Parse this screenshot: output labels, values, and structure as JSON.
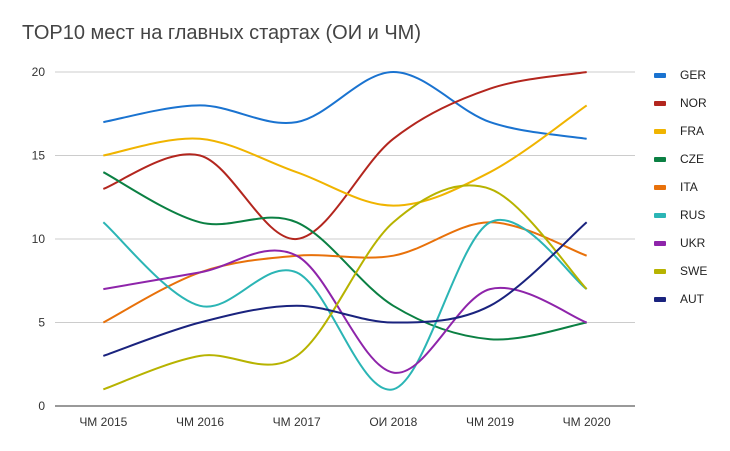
{
  "chart_data": {
    "type": "line",
    "title": "TOP10 мест на главных стартах (ОИ и ЧМ)",
    "xlabel": "",
    "ylabel": "",
    "ylim": [
      0,
      20
    ],
    "yticks": [
      "0",
      "5",
      "10",
      "15",
      "20"
    ],
    "categories": [
      "ЧМ 2015",
      "ЧМ 2016",
      "ЧМ 2017",
      "ОИ 2018",
      "ЧМ 2019",
      "ЧМ 2020"
    ],
    "grid": true,
    "legend": "right",
    "series": [
      {
        "name": "GER",
        "color": "#1a73d0",
        "values": [
          17,
          18,
          17,
          20,
          17,
          16
        ]
      },
      {
        "name": "NOR",
        "color": "#b3261e",
        "values": [
          13,
          15,
          10,
          16,
          19,
          20
        ]
      },
      {
        "name": "FRA",
        "color": "#f0b400",
        "values": [
          15,
          16,
          14,
          12,
          14,
          18
        ]
      },
      {
        "name": "CZE",
        "color": "#0b8043",
        "values": [
          14,
          11,
          11,
          6,
          4,
          5
        ]
      },
      {
        "name": "ITA",
        "color": "#e8710a",
        "values": [
          5,
          8,
          9,
          9,
          11,
          9
        ]
      },
      {
        "name": "RUS",
        "color": "#2bb5b5",
        "values": [
          11,
          6,
          8,
          1,
          11,
          7
        ]
      },
      {
        "name": "UKR",
        "color": "#8e24aa",
        "values": [
          7,
          8,
          9,
          2,
          7,
          5
        ]
      },
      {
        "name": "SWE",
        "color": "#b7b300",
        "values": [
          1,
          3,
          3,
          11,
          13,
          7
        ]
      },
      {
        "name": "AUT",
        "color": "#1a237e",
        "values": [
          3,
          5,
          6,
          5,
          6,
          11
        ]
      }
    ]
  }
}
